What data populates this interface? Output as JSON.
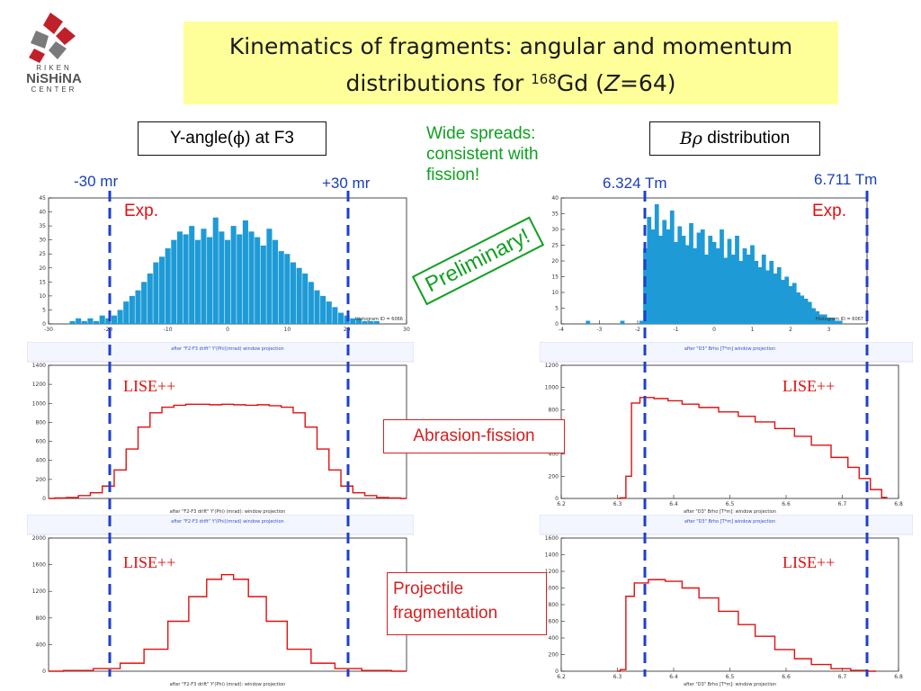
{
  "logo": {
    "line1": "RIKEN",
    "line2": "NiSHiNA",
    "line3": "CENTER"
  },
  "title": {
    "line1": "Kinematics of fragments: angular and momentum",
    "line2_pre": "distributions for ",
    "mass": "168",
    "element": "Gd",
    "z_pre": " (",
    "z_sym": "Z",
    "z_val": "=64)"
  },
  "left_label": {
    "pre": "Y-angle(",
    "sym": "ϕ",
    "post": ") at F3"
  },
  "right_label": {
    "sym": "Bρ",
    "post": " distribution"
  },
  "note": {
    "line1": "Wide spreads:",
    "line2": "consistent with",
    "line3": "fission!"
  },
  "preliminary": "Preliminary!",
  "left_cuts": {
    "low": "-30 mr",
    "high": "+30 mr"
  },
  "right_cuts": {
    "low": "6.324 Tm",
    "high": "6.711 Tm"
  },
  "exp_label": "Exp.",
  "lise_label": "LISE++",
  "abrasion_label": "Abrasion-fission",
  "projectile_label": {
    "line1": "Projectile",
    "line2": "fragmentation"
  },
  "colors": {
    "blue_hist": "#1e9bd6",
    "red_hist": "#e01010",
    "cut_line": "#1f3fd0",
    "title_bg": "#ffff99"
  },
  "chart_data": [
    {
      "type": "bar",
      "name": "exp-y-angle",
      "hist_id": "Histogram ID = 6066",
      "xlim": [
        -30,
        30
      ],
      "ylim": [
        0,
        45
      ],
      "xticks": [
        -30,
        -20,
        -10,
        0,
        10,
        20,
        30
      ],
      "yticks": [
        0,
        5,
        10,
        15,
        20,
        25,
        30,
        35,
        40,
        45
      ],
      "x": [
        -26,
        -25,
        -24,
        -23,
        -22,
        -21,
        -20,
        -19,
        -18,
        -17,
        -16,
        -15,
        -14,
        -13,
        -12,
        -11,
        -10,
        -9,
        -8,
        -7,
        -6,
        -5,
        -4,
        -3,
        -2,
        -1,
        0,
        1,
        2,
        3,
        4,
        5,
        6,
        7,
        8,
        9,
        10,
        11,
        12,
        13,
        14,
        15,
        16,
        17,
        18,
        19,
        20,
        21,
        22,
        23,
        24,
        25,
        26
      ],
      "values": [
        1,
        2,
        1,
        2,
        1,
        3,
        2,
        3,
        5,
        8,
        10,
        12,
        15,
        18,
        22,
        24,
        27,
        30,
        33,
        32,
        35,
        30,
        34,
        31,
        38,
        33,
        30,
        35,
        32,
        37,
        33,
        31,
        28,
        34,
        30,
        26,
        25,
        22,
        20,
        18,
        15,
        12,
        10,
        8,
        6,
        4,
        3,
        2,
        2,
        1,
        1,
        1,
        0
      ]
    },
    {
      "type": "bar",
      "name": "exp-brho",
      "hist_id": "Histogram ID = 6067",
      "xlim": [
        -4,
        4
      ],
      "ylim": [
        0,
        40
      ],
      "xticks": [
        -4,
        -3,
        -2,
        -1,
        0,
        1,
        2,
        3,
        4
      ],
      "yticks": [
        0,
        5,
        10,
        15,
        20,
        25,
        30,
        35,
        40
      ],
      "x": [
        -3.3,
        -2.4,
        -1.9,
        -1.8,
        -1.7,
        -1.6,
        -1.5,
        -1.4,
        -1.3,
        -1.2,
        -1.1,
        -1.0,
        -0.9,
        -0.8,
        -0.7,
        -0.6,
        -0.5,
        -0.4,
        -0.3,
        -0.2,
        -0.1,
        0.0,
        0.1,
        0.2,
        0.3,
        0.4,
        0.5,
        0.6,
        0.7,
        0.8,
        0.9,
        1.0,
        1.1,
        1.2,
        1.3,
        1.4,
        1.5,
        1.6,
        1.7,
        1.8,
        1.9,
        2.0,
        2.1,
        2.2,
        2.3,
        2.4,
        2.5,
        2.6,
        2.7,
        2.8,
        2.9,
        3.0,
        3.1,
        3.2,
        3.3
      ],
      "values": [
        1,
        1,
        1,
        24,
        34,
        30,
        38,
        28,
        33,
        30,
        36,
        26,
        31,
        28,
        25,
        32,
        24,
        29,
        30,
        22,
        28,
        26,
        24,
        30,
        21,
        27,
        22,
        28,
        20,
        24,
        22,
        25,
        20,
        18,
        22,
        17,
        20,
        16,
        18,
        14,
        15,
        12,
        13,
        10,
        9,
        8,
        7,
        5,
        4,
        3,
        3,
        2,
        2,
        1,
        1
      ]
    },
    {
      "type": "line",
      "name": "lise-abrasion-y",
      "header": "after \"F2-F3 drift\" Y'(Phi)(mrad) window projection",
      "xlabel": "after \"F2-F3 drift\" Y'(Phi) (mrad): window projection",
      "xlim": [
        -30,
        30
      ],
      "ylim": [
        0,
        1400
      ],
      "yticks": [
        0,
        200,
        400,
        600,
        800,
        1000,
        1200,
        1400
      ],
      "x": [
        -30,
        -28,
        -26,
        -24,
        -22,
        -20,
        -18,
        -16,
        -14,
        -12,
        -10,
        -8,
        -6,
        -4,
        -2,
        0,
        2,
        4,
        6,
        8,
        10,
        12,
        14,
        16,
        18,
        20,
        22,
        24,
        26,
        28,
        30
      ],
      "values": [
        0,
        5,
        10,
        30,
        60,
        130,
        300,
        520,
        750,
        900,
        960,
        980,
        990,
        990,
        985,
        990,
        985,
        980,
        985,
        975,
        960,
        900,
        750,
        520,
        300,
        130,
        60,
        30,
        10,
        5,
        0
      ]
    },
    {
      "type": "line",
      "name": "lise-abrasion-brho",
      "header": "after \"D3\" Brho [T*m] window projection",
      "xlabel": "after \"D3\" Brho [T*m]: window projection",
      "xlim": [
        6.2,
        6.8
      ],
      "ylim": [
        0,
        1200
      ],
      "yticks": [
        0,
        200,
        400,
        600,
        800,
        1000,
        1200
      ],
      "xticks": [
        6.2,
        6.3,
        6.4,
        6.5,
        6.6,
        6.7,
        6.8
      ],
      "x": [
        6.3,
        6.31,
        6.32,
        6.33,
        6.35,
        6.38,
        6.4,
        6.43,
        6.46,
        6.5,
        6.53,
        6.56,
        6.6,
        6.63,
        6.66,
        6.7,
        6.72,
        6.74,
        6.76,
        6.78
      ],
      "values": [
        0,
        5,
        200,
        860,
        910,
        900,
        880,
        850,
        820,
        780,
        740,
        690,
        630,
        560,
        480,
        370,
        280,
        180,
        80,
        10
      ]
    },
    {
      "type": "line",
      "name": "lise-projectile-y",
      "header": "after \"F2-F3 drift\" Y'(Phi)(mrad) window projection",
      "xlabel": "after \"F2-F3 drift\" Y'(Phi) (mrad): window projection",
      "xlim": [
        -30,
        30
      ],
      "ylim": [
        0,
        2000
      ],
      "yticks": [
        0,
        400,
        800,
        1200,
        1600,
        2000
      ],
      "x": [
        -30,
        -25,
        -20,
        -16,
        -12,
        -8,
        -5,
        -2,
        0,
        2,
        5,
        8,
        12,
        16,
        20,
        25,
        30
      ],
      "values": [
        0,
        10,
        40,
        120,
        330,
        750,
        1120,
        1380,
        1450,
        1380,
        1120,
        750,
        330,
        120,
        40,
        10,
        0
      ]
    },
    {
      "type": "line",
      "name": "lise-projectile-brho",
      "header": "after \"D3\" Brho [T*m] window projection",
      "xlabel": "after \"D3\" Brho [T*m]: window projection",
      "xlim": [
        6.2,
        6.8
      ],
      "ylim": [
        0,
        1600
      ],
      "yticks": [
        0,
        200,
        400,
        600,
        800,
        1000,
        1200,
        1400,
        1600
      ],
      "xticks": [
        6.2,
        6.3,
        6.4,
        6.5,
        6.6,
        6.7,
        6.8
      ],
      "x": [
        6.3,
        6.31,
        6.32,
        6.34,
        6.37,
        6.4,
        6.43,
        6.46,
        6.5,
        6.53,
        6.56,
        6.6,
        6.63,
        6.66,
        6.7,
        6.73,
        6.76
      ],
      "values": [
        0,
        20,
        900,
        1060,
        1100,
        1080,
        1000,
        880,
        720,
        560,
        420,
        260,
        150,
        80,
        30,
        10,
        0
      ]
    }
  ]
}
